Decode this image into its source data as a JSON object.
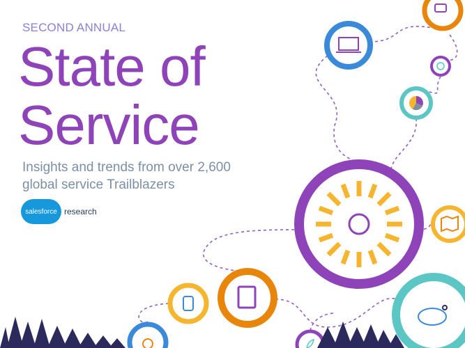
{
  "cover": {
    "kicker": "SECOND ANNUAL",
    "title_line1": "State of",
    "title_line2": "Service",
    "subtitle_line1": "Insights and trends from over 2,600",
    "subtitle_line2": "global service Trailblazers"
  },
  "logo": {
    "brand": "salesforce",
    "suffix": "research"
  },
  "colors": {
    "purple": "#8e44b8",
    "orange": "#e8860b",
    "yellow": "#f5b52e",
    "blue": "#3a8ad9",
    "teal": "#5bc6c4",
    "navy": "#2c2a5c"
  }
}
